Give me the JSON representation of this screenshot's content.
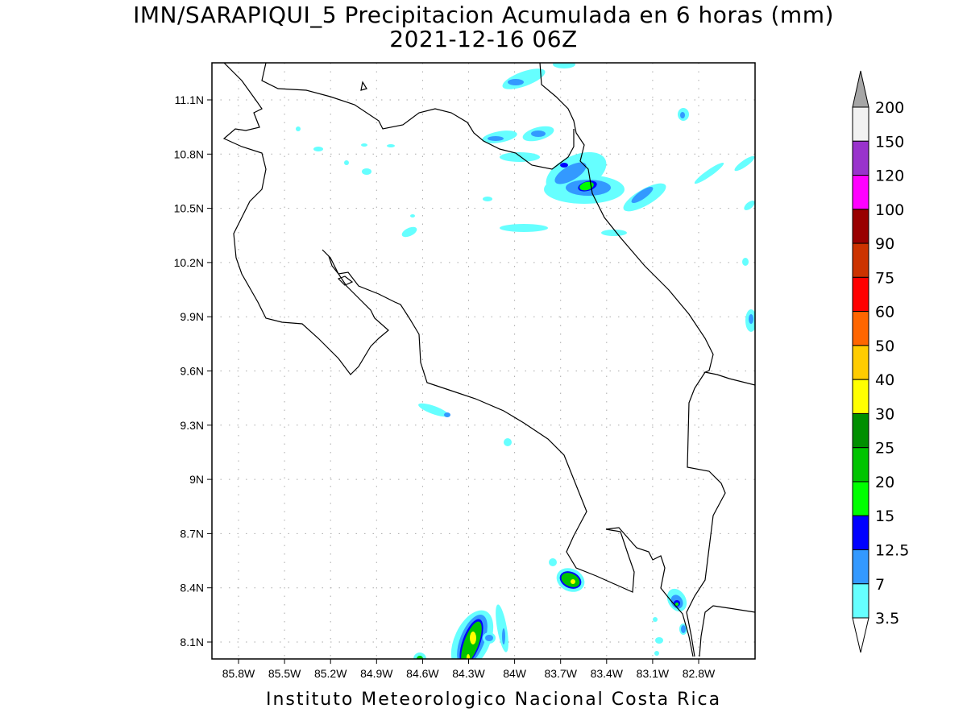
{
  "title": "IMN/SARAPIQUI_5 Precipitacion Acumulada en 6 horas (mm)",
  "subtitle": "2021-12-16 06Z",
  "footer": "Instituto Meteorologico Nacional Costa Rica",
  "map_data": {
    "type": "filled-contour",
    "variable": "6-hour accumulated precipitation (mm)",
    "lon_range": [
      -85.97,
      -82.43
    ],
    "lat_range": [
      8.0,
      11.3
    ],
    "x_ticks": [
      "85.8W",
      "85.5W",
      "85.2W",
      "84.9W",
      "84.6W",
      "84.3W",
      "84W",
      "83.7W",
      "83.4W",
      "83.1W",
      "82.8W"
    ],
    "x_tick_values": [
      -85.8,
      -85.5,
      -85.2,
      -84.9,
      -84.6,
      -84.3,
      -84.0,
      -83.7,
      -83.4,
      -83.1,
      -82.8
    ],
    "y_ticks": [
      "11.1N",
      "10.8N",
      "10.5N",
      "10.2N",
      "9.9N",
      "9.6N",
      "9.3N",
      "9N",
      "8.7N",
      "8.4N",
      "8.1N"
    ],
    "y_tick_values": [
      11.1,
      10.8,
      10.5,
      10.2,
      9.9,
      9.6,
      9.3,
      9.0,
      8.7,
      8.4,
      8.1
    ],
    "grid": true
  },
  "colorbar": {
    "labels": [
      "200",
      "150",
      "120",
      "100",
      "90",
      "75",
      "60",
      "50",
      "40",
      "30",
      "25",
      "20",
      "15",
      "12.5",
      "7",
      "3.5"
    ],
    "colors": [
      "#f2f2f2",
      "#9933cc",
      "#ff00ff",
      "#990000",
      "#cc3300",
      "#ff0000",
      "#ff6600",
      "#ffcc00",
      "#ffff00",
      "#008f00",
      "#00c400",
      "#00ff00",
      "#0000ff",
      "#3399ff",
      "#66ffff"
    ],
    "over_color": "#a6a6a6",
    "under_color": "#ffffff"
  }
}
